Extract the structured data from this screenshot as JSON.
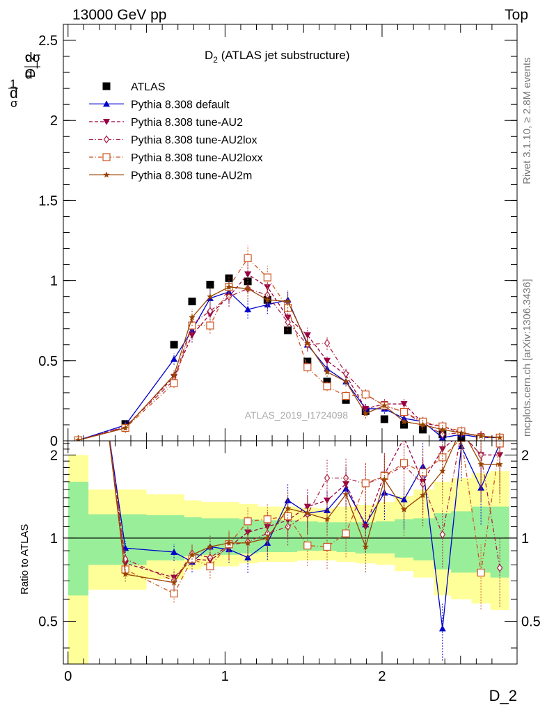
{
  "header": {
    "beam": "13000 GeV pp",
    "process": "Top"
  },
  "side_labels": {
    "rivet": "Rivet 3.1.10, ≥ 2.8M events",
    "mcplots": "mcplots.cern.ch [arXiv:1306.3436]"
  },
  "chart_data": [
    {
      "type": "scatter",
      "title": "D_2 (ATLAS jet substructure)",
      "title_main": "D",
      "title_sub": "2",
      "title_rest": " (ATLAS jet substructure)",
      "watermark": "ATLAS_2019_I1724098",
      "ylabel": "1/σ dσ/d D_2",
      "xlim": [
        -0.03,
        2.86
      ],
      "ylim": [
        0,
        2.6
      ],
      "yticks": [
        0,
        0.5,
        1,
        1.5,
        2,
        2.5
      ],
      "ytick_labels": [
        "0",
        "0.5",
        "1",
        "1.5",
        "2",
        "2.5"
      ],
      "legend_position": "top-left",
      "series": [
        {
          "name": "ATLAS",
          "color": "#000000",
          "style": "data",
          "x": [
            0.065,
            0.365,
            0.675,
            0.79,
            0.905,
            1.025,
            1.145,
            1.27,
            1.4,
            1.525,
            1.65,
            1.77,
            1.895,
            2.015,
            2.14,
            2.26,
            2.385,
            2.505,
            2.63,
            2.75
          ],
          "y": [
            0.004,
            0.105,
            0.6,
            0.87,
            0.975,
            1.015,
            0.995,
            0.88,
            0.69,
            0.495,
            0.37,
            0.255,
            0.185,
            0.135,
            0.1,
            0.07,
            0.04,
            0.02,
            0.015,
            0.01
          ]
        },
        {
          "name": "Pythia 8.308 default",
          "color": "#0000cc",
          "style": "solid-triangle",
          "x": [
            0.065,
            0.365,
            0.675,
            0.79,
            0.905,
            1.025,
            1.145,
            1.27,
            1.4,
            1.525,
            1.65,
            1.77,
            1.895,
            2.015,
            2.14,
            2.26,
            2.385,
            2.505,
            2.63,
            2.75
          ],
          "y": [
            0.004,
            0.098,
            0.51,
            0.69,
            0.89,
            0.93,
            0.82,
            0.85,
            0.88,
            0.6,
            0.45,
            0.37,
            0.2,
            0.2,
            0.14,
            0.12,
            0.02,
            0.04,
            0.02,
            0.02
          ]
        },
        {
          "name": "Pythia 8.308 tune-AU2",
          "color": "#990044",
          "style": "dashed-downtriangle",
          "x": [
            0.065,
            0.365,
            0.675,
            0.79,
            0.905,
            1.025,
            1.145,
            1.27,
            1.4,
            1.525,
            1.65,
            1.77,
            1.895,
            2.015,
            2.14,
            2.26,
            2.385,
            2.505,
            2.63,
            2.75
          ],
          "y": [
            0.004,
            0.085,
            0.4,
            0.66,
            0.79,
            0.9,
            1.04,
            0.96,
            0.77,
            0.66,
            0.5,
            0.41,
            0.2,
            0.23,
            0.23,
            0.11,
            0.09,
            0.05,
            0.03,
            0.02
          ]
        },
        {
          "name": "Pythia 8.308 tune-AU2lox",
          "color": "#aa2244",
          "style": "dashdot-diamond",
          "x": [
            0.065,
            0.365,
            0.675,
            0.79,
            0.905,
            1.025,
            1.145,
            1.27,
            1.4,
            1.525,
            1.65,
            1.77,
            1.895,
            2.015,
            2.14,
            2.26,
            2.385,
            2.505,
            2.63,
            2.75
          ],
          "y": [
            0.004,
            0.088,
            0.38,
            0.73,
            0.81,
            0.9,
            0.95,
            0.91,
            0.74,
            0.6,
            0.61,
            0.42,
            0.29,
            0.22,
            0.18,
            0.11,
            0.04,
            0.05,
            0.03,
            0.02
          ]
        },
        {
          "name": "Pythia 8.308 tune-AU2loxx",
          "color": "#cc5522",
          "style": "dashdot-opensquare",
          "x": [
            0.065,
            0.365,
            0.675,
            0.79,
            0.905,
            1.025,
            1.145,
            1.27,
            1.4,
            1.525,
            1.65,
            1.77,
            1.895,
            2.015,
            2.14,
            2.26,
            2.385,
            2.505,
            2.63,
            2.75
          ],
          "y": [
            0.004,
            0.08,
            0.36,
            0.72,
            0.72,
            0.96,
            1.14,
            1.02,
            0.83,
            0.46,
            0.34,
            0.28,
            0.29,
            0.22,
            0.18,
            0.12,
            0.09,
            0.06,
            0.02,
            0.02
          ]
        },
        {
          "name": "Pythia 8.308 tune-AU2m",
          "color": "#994400",
          "style": "solid-star",
          "x": [
            0.065,
            0.365,
            0.675,
            0.79,
            0.905,
            1.025,
            1.145,
            1.27,
            1.4,
            1.525,
            1.65,
            1.77,
            1.895,
            2.015,
            2.14,
            2.26,
            2.385,
            2.505,
            2.63,
            2.75
          ],
          "y": [
            0.004,
            0.08,
            0.41,
            0.77,
            0.9,
            0.96,
            0.95,
            0.88,
            0.87,
            0.61,
            0.43,
            0.37,
            0.17,
            0.22,
            0.12,
            0.1,
            0.07,
            0.05,
            0.03,
            0.02
          ]
        }
      ]
    },
    {
      "type": "line",
      "ylabel": "Ratio to ATLAS",
      "xlabel": "D_2",
      "xlim": [
        -0.03,
        2.86
      ],
      "ylim": [
        0.35,
        2.25
      ],
      "xticks": [
        0,
        1,
        2
      ],
      "xtick_labels": [
        "0",
        "1",
        "2"
      ],
      "yticks": [
        0.5,
        1,
        2
      ],
      "ytick_labels": [
        "0.5",
        "1",
        "2"
      ],
      "bands": {
        "edges": [
          0.0,
          0.13,
          0.25,
          0.5,
          0.74,
          0.85,
          0.97,
          1.09,
          1.21,
          1.33,
          1.46,
          1.59,
          1.71,
          1.83,
          1.96,
          2.08,
          2.2,
          2.33,
          2.44,
          2.57,
          2.69,
          2.81
        ],
        "inner_lo": [
          0.62,
          0.8,
          0.8,
          0.83,
          0.86,
          0.87,
          0.87,
          0.88,
          0.89,
          0.89,
          0.9,
          0.9,
          0.89,
          0.88,
          0.88,
          0.85,
          0.83,
          0.77,
          0.75,
          0.75,
          0.72
        ],
        "inner_hi": [
          1.6,
          1.22,
          1.22,
          1.21,
          1.19,
          1.18,
          1.18,
          1.17,
          1.16,
          1.16,
          1.15,
          1.14,
          1.14,
          1.14,
          1.15,
          1.17,
          1.18,
          1.23,
          1.25,
          1.3,
          1.3
        ],
        "outer_lo": [
          0.2,
          0.65,
          0.65,
          0.71,
          0.77,
          0.79,
          0.79,
          0.81,
          0.82,
          0.82,
          0.83,
          0.83,
          0.82,
          0.81,
          0.8,
          0.76,
          0.72,
          0.62,
          0.6,
          0.58,
          0.55
        ],
        "outer_hi": [
          2.0,
          1.5,
          1.5,
          1.44,
          1.37,
          1.35,
          1.35,
          1.33,
          1.3,
          1.3,
          1.29,
          1.28,
          1.3,
          1.32,
          1.35,
          1.42,
          1.5,
          1.6,
          1.65,
          1.72,
          1.75
        ]
      },
      "series": [
        {
          "name": "Pythia 8.308 default",
          "color": "#0000cc",
          "style": "solid-triangle",
          "x": [
            0.365,
            0.675,
            0.79,
            0.905,
            1.025,
            1.145,
            1.27,
            1.4,
            1.525,
            1.65,
            1.77,
            1.895,
            2.015,
            2.14,
            2.26,
            2.385,
            2.505,
            2.63,
            2.75
          ],
          "y": [
            0.92,
            0.89,
            0.82,
            0.93,
            0.91,
            0.85,
            0.96,
            1.37,
            1.23,
            1.26,
            1.51,
            1.12,
            1.46,
            1.38,
            1.82,
            0.47,
            2.15,
            1.52,
            2.2
          ]
        },
        {
          "name": "Pythia 8.308 tune-AU2",
          "color": "#990044",
          "style": "dashed-downtriangle",
          "x": [
            0.365,
            0.675,
            0.79,
            0.905,
            1.025,
            1.145,
            1.27,
            1.4,
            1.525,
            1.65,
            1.77,
            1.895,
            2.015,
            2.14,
            2.26,
            2.385,
            2.505,
            2.63,
            2.75
          ],
          "y": [
            0.81,
            0.72,
            0.84,
            0.83,
            0.93,
            1.05,
            1.1,
            1.16,
            1.3,
            1.37,
            1.57,
            1.1,
            1.7,
            2.3,
            1.6,
            2.1,
            2.4,
            2.0,
            2.0
          ]
        },
        {
          "name": "Pythia 8.308 tune-AU2lox",
          "color": "#aa2244",
          "style": "dashdot-diamond",
          "x": [
            0.365,
            0.675,
            0.79,
            0.905,
            1.025,
            1.145,
            1.27,
            1.4,
            1.525,
            1.65,
            1.77,
            1.895,
            2.015,
            2.14,
            2.26,
            2.385,
            2.505,
            2.63,
            2.75
          ],
          "y": [
            0.84,
            0.7,
            0.88,
            0.85,
            0.94,
            0.97,
            1.04,
            1.1,
            1.22,
            1.65,
            1.65,
            1.57,
            1.67,
            1.83,
            1.57,
            1.03,
            2.4,
            2.0,
            0.78
          ]
        },
        {
          "name": "Pythia 8.308 tune-AU2loxx",
          "color": "#cc5522",
          "style": "dashdot-opensquare",
          "x": [
            0.365,
            0.675,
            0.79,
            0.905,
            1.025,
            1.145,
            1.27,
            1.4,
            1.525,
            1.65,
            1.77,
            1.895,
            2.015,
            2.14,
            2.26,
            2.385,
            2.505,
            2.63,
            2.75
          ],
          "y": [
            0.77,
            0.63,
            0.84,
            0.79,
            0.95,
            1.15,
            1.17,
            1.2,
            0.94,
            0.93,
            1.04,
            1.58,
            1.68,
            1.87,
            1.73,
            1.96,
            2.3,
            0.75,
            2.2
          ]
        },
        {
          "name": "Pythia 8.308 tune-AU2m",
          "color": "#994400",
          "style": "solid-star",
          "x": [
            0.365,
            0.675,
            0.79,
            0.905,
            1.025,
            1.145,
            1.27,
            1.4,
            1.525,
            1.65,
            1.77,
            1.895,
            2.015,
            2.14,
            2.26,
            2.385,
            2.505,
            2.63,
            2.75
          ],
          "y": [
            0.74,
            0.69,
            0.87,
            0.93,
            0.96,
            0.96,
            1.0,
            1.28,
            1.23,
            1.17,
            1.44,
            0.93,
            1.63,
            1.27,
            1.43,
            1.75,
            2.5,
            1.85,
            1.85
          ]
        }
      ]
    }
  ]
}
